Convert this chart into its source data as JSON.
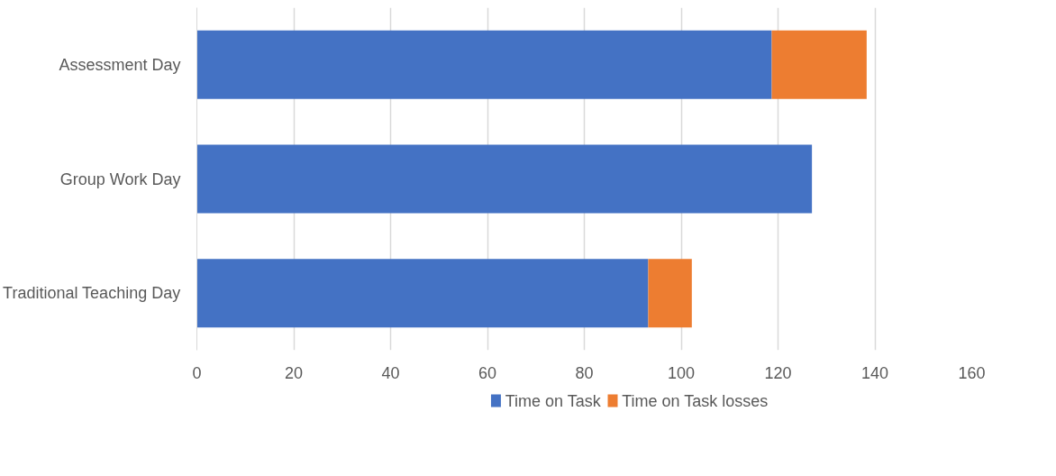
{
  "chart_data": {
    "type": "bar",
    "orientation": "horizontal",
    "stacked": true,
    "categories": [
      "Assessment Day",
      "Group Work Day",
      "Traditional Teaching Day"
    ],
    "series": [
      {
        "name": "Time on Task",
        "color": "#4472c4",
        "values": [
          118.7,
          127.0,
          93.2
        ]
      },
      {
        "name": "Time on Task losses",
        "color": "#ed7d31",
        "values": [
          19.6,
          null,
          9.0
        ]
      }
    ],
    "xlim": [
      0,
      160
    ],
    "xticks": [
      0,
      20,
      40,
      60,
      80,
      100,
      120,
      140,
      160
    ],
    "grid": "x",
    "legend": "bottom"
  }
}
